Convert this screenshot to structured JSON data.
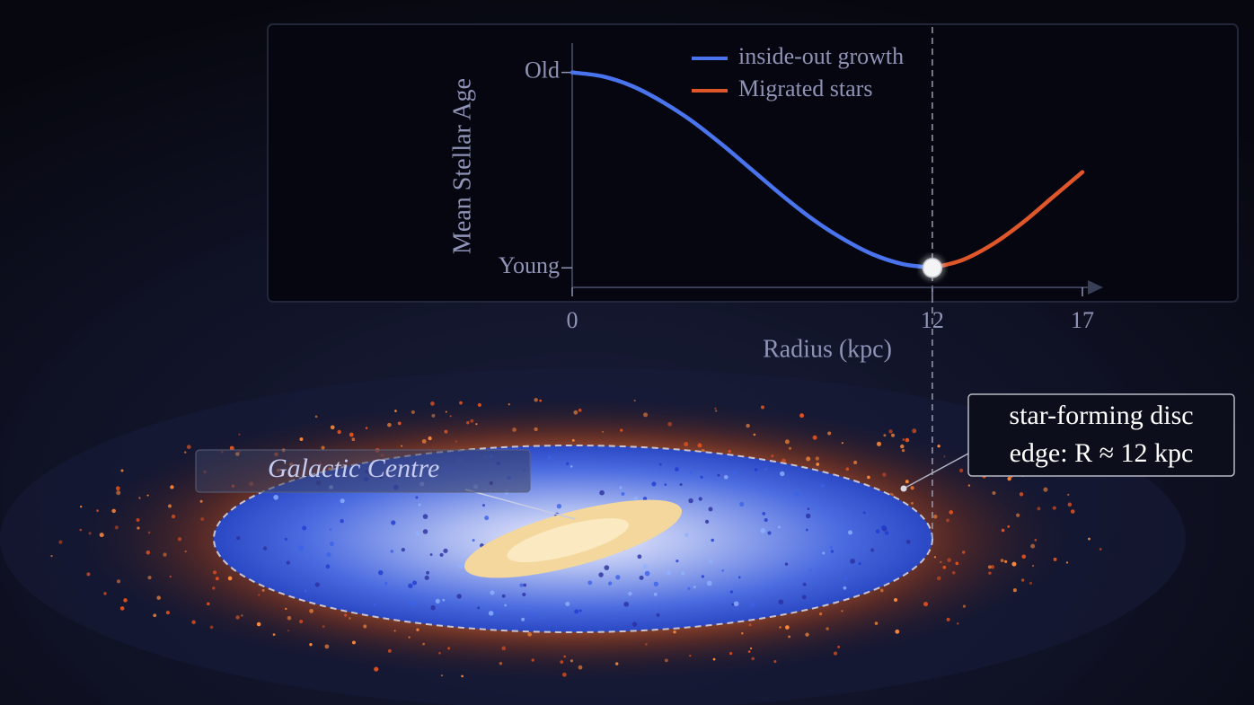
{
  "chart_data": {
    "type": "line",
    "y_label": "Mean Stellar Age",
    "x_label": "Radius (kpc)",
    "xlim": [
      0,
      17.6
    ],
    "xticks": [
      0,
      12,
      17
    ],
    "ylim": [
      -0.1,
      1.15
    ],
    "yticks": [
      {
        "value": 1,
        "label": "Old"
      },
      {
        "value": 0,
        "label": "Young"
      }
    ],
    "reference_x": 12,
    "series": [
      {
        "name": "inside-out growth",
        "color": "#4a74ee",
        "x": [
          0,
          1,
          2,
          3,
          4,
          5,
          6,
          7,
          8,
          9,
          10,
          11,
          12
        ],
        "values": [
          1,
          0.98,
          0.93,
          0.85,
          0.75,
          0.63,
          0.5,
          0.37,
          0.25,
          0.15,
          0.07,
          0.02,
          0
        ]
      },
      {
        "name": "Migrated stars",
        "color": "#e0562b",
        "x": [
          12,
          13,
          14,
          15,
          16,
          17
        ],
        "values": [
          0,
          0.04,
          0.12,
          0.23,
          0.36,
          0.49
        ]
      }
    ]
  },
  "annotations": {
    "centre": "Galactic Centre",
    "disc_edge": [
      "star-forming disc",
      "edge: R ≈ 12 kpc"
    ]
  }
}
